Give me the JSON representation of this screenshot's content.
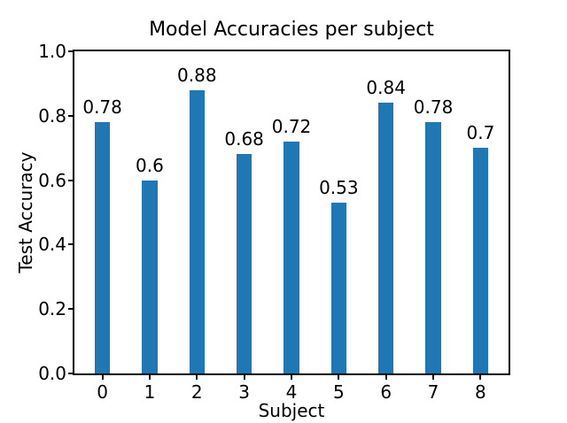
{
  "chart_data": {
    "type": "bar",
    "title": "Model Accuracies per subject",
    "xlabel": "Subject",
    "ylabel": "Test Accuracy",
    "categories": [
      "0",
      "1",
      "2",
      "3",
      "4",
      "5",
      "6",
      "7",
      "8"
    ],
    "values": [
      0.78,
      0.6,
      0.88,
      0.68,
      0.72,
      0.53,
      0.84,
      0.78,
      0.7
    ],
    "value_labels": [
      "0.78",
      "0.6",
      "0.88",
      "0.68",
      "0.72",
      "0.53",
      "0.84",
      "0.78",
      "0.7"
    ],
    "ylim": [
      0.0,
      1.0
    ],
    "yticks": [
      0.0,
      0.2,
      0.4,
      0.6,
      0.8,
      1.0
    ],
    "ytick_labels": [
      "0.0",
      "0.2",
      "0.4",
      "0.6",
      "0.8",
      "1.0"
    ],
    "bar_color": "#1f77b4",
    "text_color": "#000000",
    "grid": false,
    "legend": null
  }
}
